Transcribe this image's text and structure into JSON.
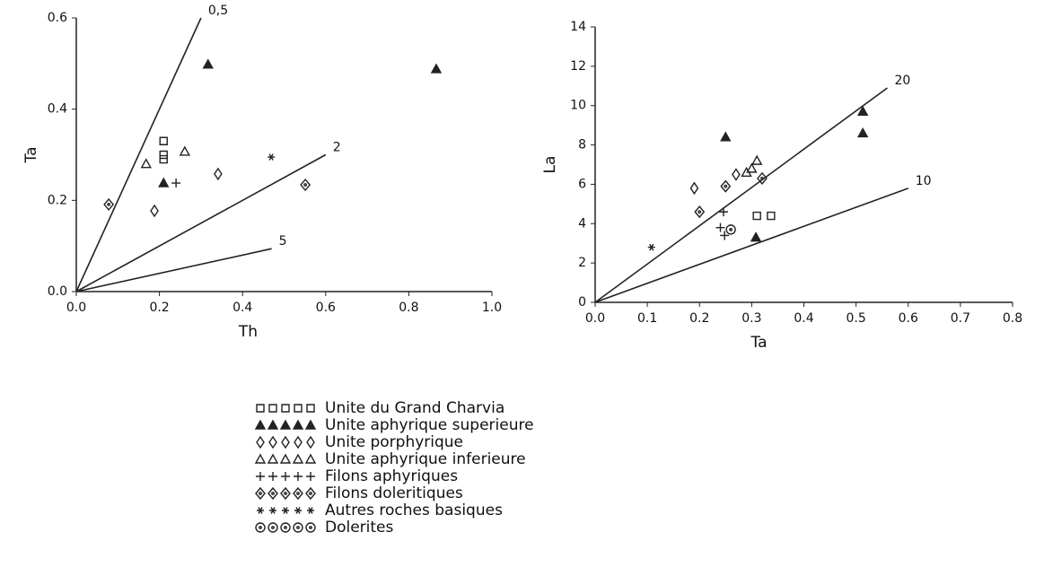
{
  "chart_data": [
    {
      "type": "scatter",
      "xlabel": "Th",
      "ylabel": "Ta",
      "xlim": [
        0,
        1
      ],
      "ylim": [
        0,
        0.6
      ],
      "xticks": [
        {
          "value": 0,
          "label": "0.0"
        },
        0.2,
        0.4,
        0.6,
        0.8,
        {
          "value": 1,
          "label": "1.0"
        }
      ],
      "yticks": [
        {
          "value": 0,
          "label": "0.0"
        },
        0.2,
        0.4,
        0.6
      ],
      "lines": [
        {
          "label": "0,5",
          "x": [
            0,
            0.3
          ],
          "y": [
            0,
            0.6
          ]
        },
        {
          "label": "2",
          "x": [
            0,
            0.6
          ],
          "y": [
            0,
            0.3
          ]
        },
        {
          "label": "5",
          "x": [
            0,
            0.47
          ],
          "y": [
            0,
            0.094
          ]
        }
      ],
      "series": [
        {
          "marker": "square",
          "x": [
            0.21,
            0.21,
            0.21
          ],
          "y": [
            0.33,
            0.3,
            0.29
          ]
        },
        {
          "marker": "triangle-filled",
          "x": [
            0.317,
            0.866,
            0.21
          ],
          "y": [
            0.498,
            0.488,
            0.238
          ]
        },
        {
          "marker": "diamond",
          "x": [
            0.341,
            0.188
          ],
          "y": [
            0.258,
            0.177
          ]
        },
        {
          "marker": "triangle",
          "x": [
            0.168,
            0.261
          ],
          "y": [
            0.28,
            0.307
          ]
        },
        {
          "marker": "plus",
          "x": [
            0.24
          ],
          "y": [
            0.238
          ]
        },
        {
          "marker": "diamond-dot",
          "x": [
            0.078,
            0.551
          ],
          "y": [
            0.191,
            0.234
          ]
        },
        {
          "marker": "star",
          "x": [
            0.469
          ],
          "y": [
            0.295
          ]
        },
        {
          "marker": "circle-dot",
          "x": [],
          "y": []
        }
      ]
    },
    {
      "type": "scatter",
      "xlabel": "Ta",
      "ylabel": "La",
      "xlim": [
        0,
        0.8
      ],
      "ylim": [
        0,
        14
      ],
      "xticks": [
        {
          "value": 0,
          "label": "0.0"
        },
        0.1,
        0.2,
        0.3,
        0.4,
        0.5,
        0.6,
        0.7,
        0.8
      ],
      "yticks": [
        0,
        2,
        4,
        6,
        8,
        10,
        12,
        14
      ],
      "lines": [
        {
          "label": "20",
          "x": [
            0,
            0.56
          ],
          "y": [
            0,
            10.9
          ]
        },
        {
          "label": "10",
          "x": [
            0,
            0.6
          ],
          "y": [
            0,
            5.8
          ]
        }
      ],
      "series": [
        {
          "marker": "square",
          "x": [
            0.31,
            0.337
          ],
          "y": [
            4.4,
            4.4
          ]
        },
        {
          "marker": "triangle-filled",
          "x": [
            0.25,
            0.513,
            0.513,
            0.308
          ],
          "y": [
            8.4,
            9.7,
            8.6,
            3.3
          ]
        },
        {
          "marker": "diamond",
          "x": [
            0.19,
            0.27
          ],
          "y": [
            5.8,
            6.5
          ]
        },
        {
          "marker": "triangle",
          "x": [
            0.29,
            0.3,
            0.31
          ],
          "y": [
            6.6,
            6.8,
            7.2
          ]
        },
        {
          "marker": "plus",
          "x": [
            0.246,
            0.24,
            0.248
          ],
          "y": [
            4.6,
            3.8,
            3.4
          ]
        },
        {
          "marker": "diamond-dot",
          "x": [
            0.2,
            0.25,
            0.32
          ],
          "y": [
            4.6,
            5.9,
            6.3
          ]
        },
        {
          "marker": "star",
          "x": [
            0.108
          ],
          "y": [
            2.8
          ]
        },
        {
          "marker": "circle-dot",
          "x": [
            0.26
          ],
          "y": [
            3.7
          ]
        }
      ]
    }
  ],
  "legend": [
    {
      "name": "Unite du Grand Charvia",
      "marker": "square"
    },
    {
      "name": "Unite aphyrique superieure",
      "marker": "triangle-filled"
    },
    {
      "name": "Unite porphyrique",
      "marker": "diamond"
    },
    {
      "name": "Unite aphyrique inferieure",
      "marker": "triangle"
    },
    {
      "name": "Filons aphyriques",
      "marker": "plus"
    },
    {
      "name": "Filons doleritiques",
      "marker": "diamond-dot"
    },
    {
      "name": "Autres roches basiques",
      "marker": "star"
    },
    {
      "name": "Dolerites",
      "marker": "circle-dot"
    }
  ]
}
